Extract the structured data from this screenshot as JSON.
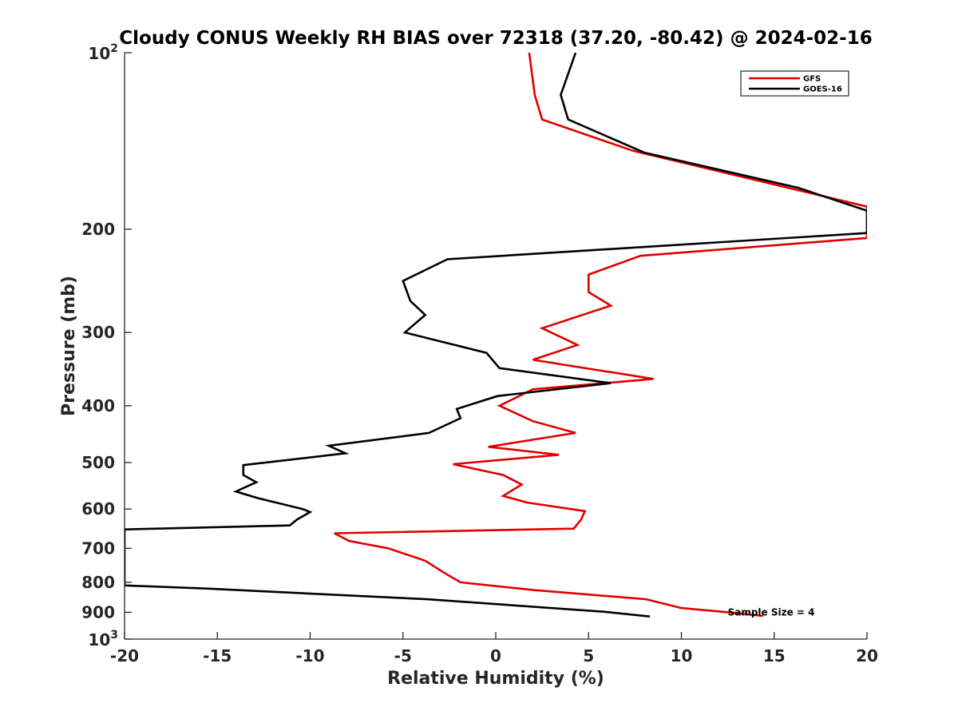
{
  "chart_data": {
    "type": "line",
    "title": "Cloudy CONUS Weekly RH BIAS over 72318 (37.20, -80.42) @ 2024-02-16",
    "xlabel": "Relative Humidity (%)",
    "ylabel": "Pressure (mb)",
    "xlim": [
      -20,
      20
    ],
    "ylim": [
      100,
      1000
    ],
    "yscale": "log",
    "y_reversed": true,
    "legend_position": "top-right",
    "x_ticks": [
      "-20",
      "-15",
      "-10",
      "-5",
      "0",
      "5",
      "10",
      "15",
      "20"
    ],
    "y_ticks": [
      {
        "value": 100,
        "base": "10",
        "exp": "2"
      },
      {
        "value": 200,
        "label": "200"
      },
      {
        "value": 300,
        "label": "300"
      },
      {
        "value": 400,
        "label": "400"
      },
      {
        "value": 500,
        "label": "500"
      },
      {
        "value": 600,
        "label": "600"
      },
      {
        "value": 700,
        "label": "700"
      },
      {
        "value": 800,
        "label": "800"
      },
      {
        "value": 900,
        "label": "900"
      },
      {
        "value": 1000,
        "base": "10",
        "exp": "3"
      }
    ],
    "annotation": {
      "text": "Sample Size = 4",
      "x": 12.5,
      "y": 900
    },
    "series": [
      {
        "name": "GFS",
        "color": "#e00000",
        "x": [
          1.8,
          2.1,
          2.5,
          7.4,
          20.0,
          20.0,
          7.8,
          5.0,
          5.0,
          6.2,
          2.5,
          4.4,
          2.0,
          8.5,
          2.0,
          0.2,
          2.0,
          4.3,
          -0.4,
          3.4,
          -2.3,
          0.4,
          1.4,
          0.4,
          1.7,
          4.8,
          4.6,
          4.2,
          -8.7,
          -7.9,
          -5.8,
          -3.8,
          -2.8,
          -1.9,
          2.1,
          8.1,
          10.0,
          12.5,
          14.4
        ],
        "y": [
          100,
          118,
          130,
          147,
          183,
          207,
          222,
          239,
          256,
          270,
          295,
          315,
          334,
          360,
          375,
          400,
          425,
          445,
          470,
          485,
          503,
          525,
          545,
          570,
          585,
          605,
          625,
          648,
          660,
          680,
          700,
          735,
          770,
          800,
          825,
          855,
          885,
          900,
          913
        ]
      },
      {
        "name": "GOES-16",
        "color": "#000000",
        "x": [
          4.3,
          3.5,
          3.9,
          8.0,
          16.3,
          20.0,
          20.0,
          -2.6,
          -5.0,
          -4.6,
          -3.8,
          -4.9,
          -0.5,
          0.2,
          6.2,
          0.1,
          -2.1,
          -1.9,
          -3.6,
          -9.0,
          -8.1,
          -13.6,
          -13.6,
          -12.9,
          -14.0,
          -12.8,
          -10.4,
          -10.0,
          -10.7,
          -11.1,
          -20.0,
          -20.0,
          -15.6,
          -3.7,
          5.8,
          8.3
        ],
        "y": [
          100,
          118,
          130,
          148,
          170,
          186,
          203,
          225,
          245,
          265,
          280,
          300,
          325,
          345,
          366,
          385,
          405,
          420,
          445,
          468,
          482,
          505,
          525,
          540,
          560,
          575,
          600,
          607,
          625,
          640,
          650,
          810,
          820,
          855,
          898,
          915
        ]
      }
    ]
  }
}
